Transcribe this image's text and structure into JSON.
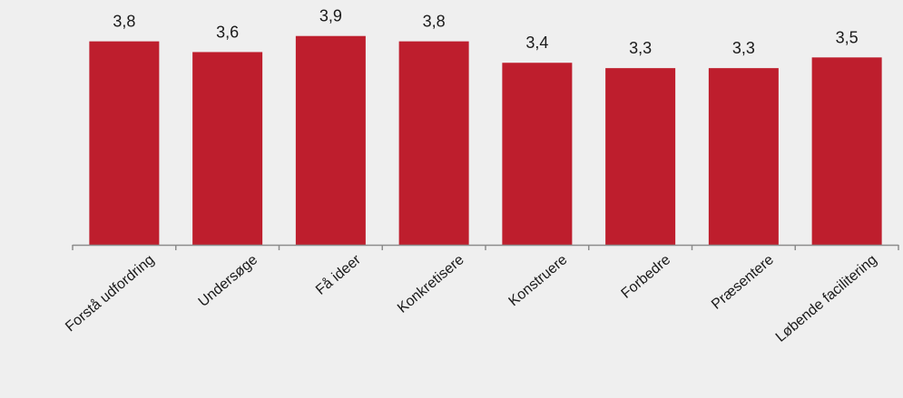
{
  "colors": {
    "background": "#efefef",
    "bar": "#be1e2d",
    "axis": "#8c8c8c",
    "text": "#1a1a1a"
  },
  "chart_data": {
    "type": "bar",
    "categories": [
      "Forstå udfordring",
      "Undersøge",
      "Få ideer",
      "Konkretisere",
      "Konstruere",
      "Forbedre",
      "Præsentere",
      "Løbende facilitering"
    ],
    "values": [
      3.8,
      3.6,
      3.9,
      3.8,
      3.4,
      3.3,
      3.3,
      3.5
    ],
    "value_labels": [
      "3,8",
      "3,6",
      "3,9",
      "3,8",
      "3,4",
      "3,3",
      "3,3",
      "3,5"
    ],
    "title": "",
    "xlabel": "",
    "ylabel": "",
    "ylim": [
      0,
      4.2
    ],
    "grid": false,
    "legend": "none"
  }
}
